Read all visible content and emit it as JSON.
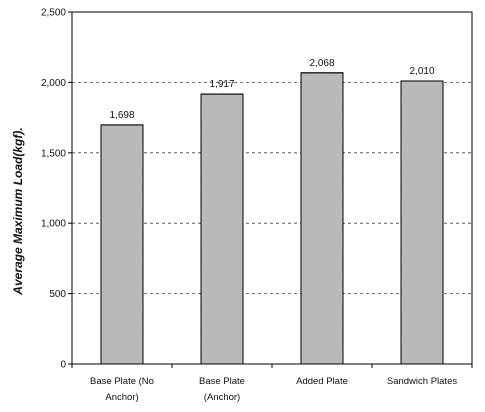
{
  "chart_data": {
    "type": "bar",
    "title": "",
    "xlabel": "",
    "ylabel": "Average Maximum Load(kgf).",
    "categories": [
      [
        "Base Plate (No",
        "Anchor)"
      ],
      [
        "Base Plate",
        "(Anchor)"
      ],
      [
        "Added Plate"
      ],
      [
        "Sandwich Plates"
      ]
    ],
    "values": [
      1698,
      1917,
      2068,
      2010
    ],
    "value_labels": [
      "1,698",
      "1,917",
      "2,068",
      "2,010"
    ],
    "ylim": [
      0,
      2500
    ],
    "yticks": [
      0,
      500,
      1000,
      1500,
      2000,
      2500
    ],
    "ytick_labels": [
      "0",
      "500",
      "1,000",
      "1,500",
      "2,000",
      "2,500"
    ],
    "grid": "horizontal-dashed",
    "bar_color": "#b8b8b8",
    "bar_pattern": "speckled-gray"
  }
}
